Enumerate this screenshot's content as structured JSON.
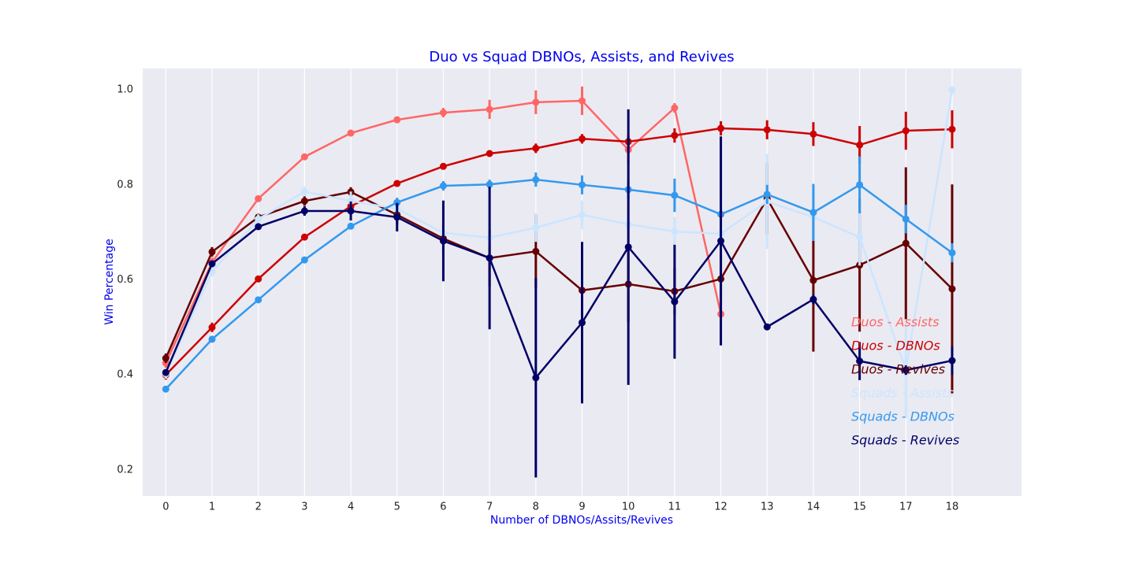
{
  "chart_data": {
    "type": "line",
    "title": "Duo vs Squad DBNOs, Assists, and Revives",
    "x_label": "Number of DBNOs/Assits/Revives",
    "y_label": "Win Percentage",
    "categories": [
      "0",
      "1",
      "2",
      "3",
      "4",
      "5",
      "6",
      "7",
      "8",
      "9",
      "10",
      "11",
      "12",
      "13",
      "14",
      "15",
      "17",
      "18"
    ],
    "ylim": [
      0.145,
      1.045
    ],
    "yticks": [
      0.2,
      0.4,
      0.6,
      0.8,
      {
        "value": 1,
        "label": "1.0"
      }
    ],
    "grid": "x",
    "legend": "lower right",
    "series": [
      {
        "name": "Duos - Assists",
        "color": "#ff6666",
        "values": [
          0.425,
          0.637,
          0.771,
          0.859,
          0.909,
          0.937,
          0.952,
          0.959,
          0.974,
          0.977,
          0.874,
          0.962,
          0.528,
          null,
          null,
          null,
          null,
          null
        ],
        "errors": [
          0.01,
          0.01,
          0.005,
          0.005,
          0.005,
          0.005,
          0.01,
          0.02,
          0.025,
          0.03,
          0.03,
          0.01,
          0.01,
          null,
          null,
          null,
          null,
          null
        ]
      },
      {
        "name": "Duos - DBNOs",
        "color": "#cc0000",
        "values": [
          0.4,
          0.5,
          0.602,
          0.69,
          0.755,
          0.803,
          0.839,
          0.866,
          0.877,
          0.897,
          0.891,
          0.904,
          0.919,
          0.916,
          0.907,
          0.884,
          0.914,
          0.917
        ],
        "errors": [
          0.01,
          0.01,
          0.005,
          0.005,
          0.005,
          0.005,
          0.005,
          0.005,
          0.01,
          0.01,
          0.015,
          0.015,
          0.015,
          0.02,
          0.025,
          0.04,
          0.04,
          0.04
        ]
      },
      {
        "name": "Duos - Revives",
        "color": "#660000",
        "values": [
          0.435,
          0.659,
          0.732,
          0.766,
          0.785,
          0.737,
          0.687,
          0.646,
          0.66,
          0.578,
          0.591,
          0.576,
          0.602,
          0.771,
          0.599,
          0.631,
          0.677,
          0.581
        ],
        "errors": [
          0.01,
          0.01,
          0.005,
          0.01,
          0.01,
          0.02,
          0.03,
          0.06,
          0.077,
          0.05,
          0.08,
          0.05,
          0.05,
          0.075,
          0.15,
          0.14,
          0.16,
          0.22
        ]
      },
      {
        "name": "Squads - Assists",
        "color": "#cce5ff",
        "values": [
          0.402,
          0.617,
          0.728,
          0.786,
          0.766,
          0.75,
          0.699,
          0.689,
          0.71,
          0.737,
          0.717,
          0.702,
          0.697,
          0.765,
          0.732,
          0.69,
          0.41,
          1.0
        ],
        "errors": [
          0.01,
          0.01,
          0.01,
          0.01,
          0.02,
          0.02,
          0.02,
          0.02,
          0.03,
          0.03,
          0.03,
          0.03,
          0.03,
          0.1,
          0.05,
          0.06,
          0.1,
          0.0
        ]
      },
      {
        "name": "Squads - DBNOs",
        "color": "#3399ee",
        "values": [
          0.37,
          0.475,
          0.558,
          0.642,
          0.713,
          0.763,
          0.798,
          0.801,
          0.811,
          0.8,
          0.79,
          0.778,
          0.738,
          0.78,
          0.742,
          0.8,
          0.728,
          0.657
        ],
        "errors": [
          0.005,
          0.005,
          0.005,
          0.005,
          0.005,
          0.01,
          0.01,
          0.01,
          0.015,
          0.02,
          0.02,
          0.035,
          0.02,
          0.02,
          0.06,
          0.06,
          0.03,
          0.02
        ]
      },
      {
        "name": "Squads - Revives",
        "color": "#000066",
        "values": [
          0.405,
          0.634,
          0.712,
          0.745,
          0.745,
          0.732,
          0.682,
          0.646,
          0.394,
          0.51,
          0.669,
          0.554,
          0.682,
          0.501,
          0.559,
          0.429,
          0.41,
          0.43
        ],
        "errors": [
          0.005,
          0.005,
          0.005,
          0.01,
          0.02,
          0.03,
          0.085,
          0.15,
          0.21,
          0.17,
          0.29,
          0.12,
          0.22,
          0.005,
          0.01,
          0.04,
          0.01,
          0.03
        ]
      }
    ]
  }
}
